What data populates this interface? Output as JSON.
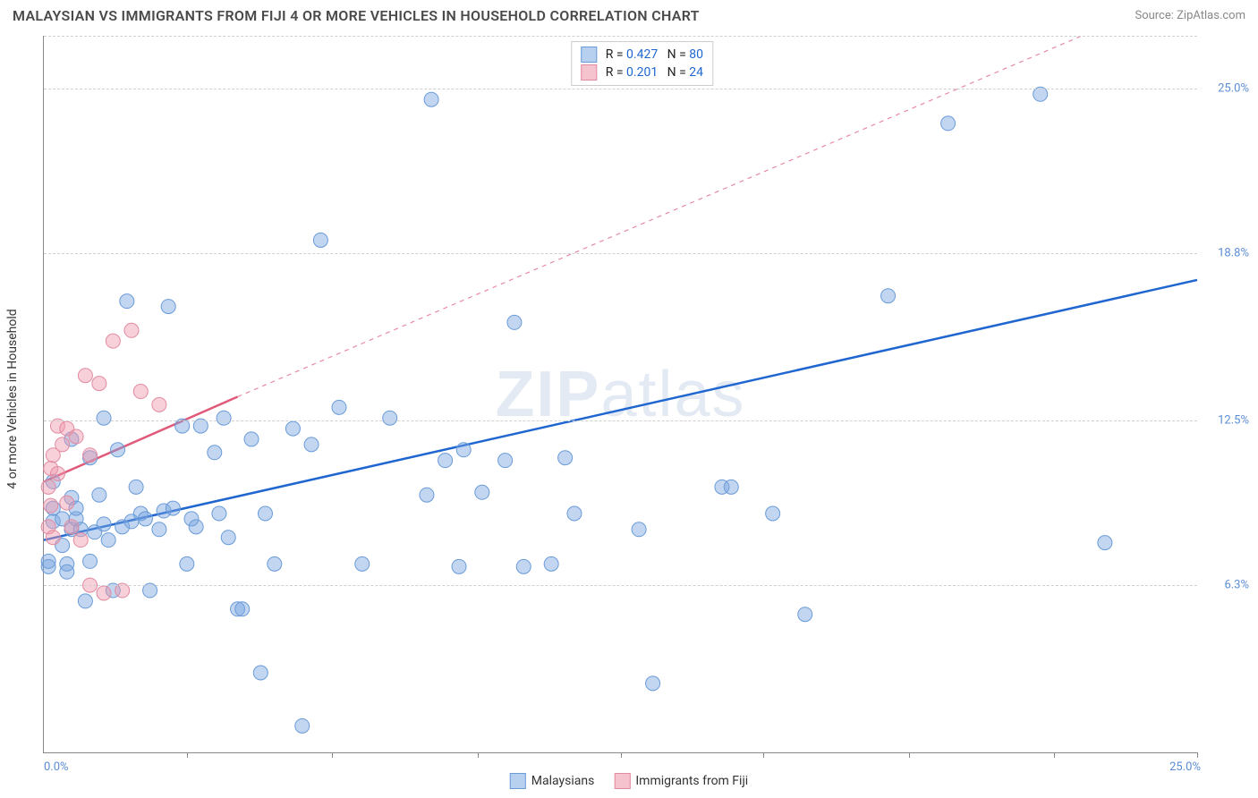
{
  "title": "MALAYSIAN VS IMMIGRANTS FROM FIJI 4 OR MORE VEHICLES IN HOUSEHOLD CORRELATION CHART",
  "source": "Source: ZipAtlas.com",
  "watermark_strong": "ZIP",
  "watermark_rest": "atlas",
  "y_axis_label": "4 or more Vehicles in Household",
  "chart": {
    "type": "scatter",
    "background_color": "#ffffff",
    "grid_color": "#d0d0d0",
    "axis_color": "#888888",
    "xlim": [
      0,
      25
    ],
    "ylim": [
      0,
      27
    ],
    "x_ticks": [
      3.1,
      6.25,
      9.4,
      12.5,
      15.6,
      18.75,
      21.9,
      25
    ],
    "y_ticks": [
      {
        "v": 6.3,
        "label": "6.3%",
        "color": "#5b8dd6"
      },
      {
        "v": 12.5,
        "label": "12.5%",
        "color": "#5b8dd6"
      },
      {
        "v": 18.8,
        "label": "18.8%",
        "color": "#5b8dd6"
      },
      {
        "v": 25.0,
        "label": "25.0%",
        "color": "#5b8dd6"
      }
    ],
    "x_range_labels": [
      {
        "v": 0,
        "label": "0.0%",
        "color": "#5b8dd6"
      },
      {
        "v": 25,
        "label": "25.0%",
        "color": "#5b8dd6"
      }
    ],
    "series": [
      {
        "name": "Malaysians",
        "color_fill": "rgba(120,165,225,0.45)",
        "color_stroke": "#6a9bd8",
        "marker_radius": 8,
        "trend": {
          "x1": 0,
          "y1": 8.0,
          "x2": 25,
          "y2": 17.8,
          "color": "#1f66d0",
          "width": 2.5,
          "dash": "none",
          "extrap": {
            "x1": 0,
            "y1": 8.0,
            "x2": 25,
            "y2": 17.8
          }
        },
        "legend_swatch_fill": "#b8d0ef",
        "legend_swatch_border": "#6a9bd8",
        "R": "0.427",
        "N": "80",
        "points": [
          [
            0.1,
            7.0
          ],
          [
            0.2,
            8.7
          ],
          [
            0.2,
            10.2
          ],
          [
            0.4,
            7.8
          ],
          [
            0.4,
            8.8
          ],
          [
            0.5,
            7.1
          ],
          [
            0.5,
            6.8
          ],
          [
            0.6,
            9.6
          ],
          [
            0.6,
            11.8
          ],
          [
            0.6,
            8.4
          ],
          [
            0.7,
            8.8
          ],
          [
            0.7,
            9.2
          ],
          [
            0.8,
            8.4
          ],
          [
            0.9,
            5.7
          ],
          [
            1.0,
            7.2
          ],
          [
            1.0,
            11.1
          ],
          [
            1.1,
            8.3
          ],
          [
            1.2,
            9.7
          ],
          [
            1.3,
            8.6
          ],
          [
            1.3,
            12.6
          ],
          [
            1.4,
            8.0
          ],
          [
            1.5,
            6.1
          ],
          [
            1.6,
            11.4
          ],
          [
            1.7,
            8.5
          ],
          [
            1.8,
            17.0
          ],
          [
            1.9,
            8.7
          ],
          [
            2.0,
            10.0
          ],
          [
            2.1,
            9.0
          ],
          [
            2.2,
            8.8
          ],
          [
            2.3,
            6.1
          ],
          [
            2.5,
            8.4
          ],
          [
            2.6,
            9.1
          ],
          [
            2.7,
            16.8
          ],
          [
            2.8,
            9.2
          ],
          [
            3.0,
            12.3
          ],
          [
            3.1,
            7.1
          ],
          [
            3.2,
            8.8
          ],
          [
            3.3,
            8.5
          ],
          [
            3.4,
            12.3
          ],
          [
            3.7,
            11.3
          ],
          [
            3.8,
            9.0
          ],
          [
            3.9,
            12.6
          ],
          [
            4.0,
            8.1
          ],
          [
            4.2,
            5.4
          ],
          [
            4.3,
            5.4
          ],
          [
            4.5,
            11.8
          ],
          [
            4.7,
            3.0
          ],
          [
            4.8,
            9.0
          ],
          [
            5.0,
            7.1
          ],
          [
            5.4,
            12.2
          ],
          [
            5.6,
            1.0
          ],
          [
            5.8,
            11.6
          ],
          [
            6.0,
            19.3
          ],
          [
            6.4,
            13.0
          ],
          [
            6.9,
            7.1
          ],
          [
            7.5,
            12.6
          ],
          [
            8.3,
            9.7
          ],
          [
            8.4,
            24.6
          ],
          [
            8.7,
            11.0
          ],
          [
            9.0,
            7.0
          ],
          [
            9.1,
            11.4
          ],
          [
            9.5,
            9.8
          ],
          [
            10.0,
            11.0
          ],
          [
            10.2,
            16.2
          ],
          [
            10.4,
            7.0
          ],
          [
            11.0,
            7.1
          ],
          [
            11.3,
            11.1
          ],
          [
            11.5,
            9.0
          ],
          [
            12.9,
            8.4
          ],
          [
            13.2,
            2.6
          ],
          [
            14.7,
            10.0
          ],
          [
            14.9,
            10.0
          ],
          [
            15.8,
            9.0
          ],
          [
            16.5,
            5.2
          ],
          [
            18.3,
            17.2
          ],
          [
            19.6,
            23.7
          ],
          [
            21.6,
            24.8
          ],
          [
            23.0,
            7.9
          ],
          [
            0.1,
            7.2
          ],
          [
            0.2,
            9.2
          ]
        ]
      },
      {
        "name": "Immigrants from Fiji",
        "color_fill": "rgba(240,150,170,0.45)",
        "color_stroke": "#e28ba0",
        "marker_radius": 8,
        "trend": {
          "x1": 0,
          "y1": 10.2,
          "x2": 4.2,
          "y2": 13.4,
          "color": "#e05a7a",
          "width": 2.5,
          "dash": "none",
          "extrap": {
            "x1": 4.2,
            "y1": 13.4,
            "x2": 22.5,
            "y2": 27.0,
            "dash": "5,5"
          }
        },
        "legend_swatch_fill": "#f5c3ce",
        "legend_swatch_border": "#e28ba0",
        "R": "0.201",
        "N": "24",
        "points": [
          [
            0.1,
            8.5
          ],
          [
            0.1,
            10.0
          ],
          [
            0.15,
            10.7
          ],
          [
            0.15,
            9.3
          ],
          [
            0.2,
            11.2
          ],
          [
            0.2,
            8.1
          ],
          [
            0.3,
            12.3
          ],
          [
            0.3,
            10.5
          ],
          [
            0.4,
            11.6
          ],
          [
            0.5,
            9.4
          ],
          [
            0.5,
            12.2
          ],
          [
            0.6,
            8.5
          ],
          [
            0.7,
            11.9
          ],
          [
            0.8,
            8.0
          ],
          [
            0.9,
            14.2
          ],
          [
            1.0,
            11.2
          ],
          [
            1.0,
            6.3
          ],
          [
            1.2,
            13.9
          ],
          [
            1.3,
            6.0
          ],
          [
            1.5,
            15.5
          ],
          [
            1.7,
            6.1
          ],
          [
            1.9,
            15.9
          ],
          [
            2.1,
            13.6
          ],
          [
            2.5,
            13.1
          ]
        ]
      }
    ],
    "legend_top": {
      "R_label": "R =",
      "N_label": "N =",
      "value_color": "#1f66d0",
      "text_color": "#222"
    },
    "legend_bottom": [
      {
        "label": "Malaysians",
        "fill": "#b8d0ef",
        "border": "#6a9bd8"
      },
      {
        "label": "Immigrants from Fiji",
        "fill": "#f5c3ce",
        "border": "#e28ba0"
      }
    ]
  }
}
